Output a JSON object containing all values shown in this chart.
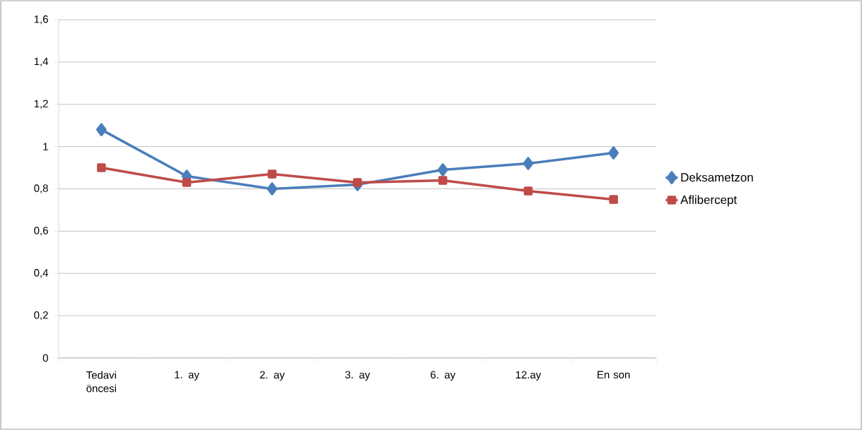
{
  "chart_data": {
    "type": "line",
    "categories": [
      "Tedavi öncesi",
      "1. ay",
      "2. ay",
      "3. ay",
      "6. ay",
      "12.ay",
      "En son"
    ],
    "series": [
      {
        "name": "Deksametzon",
        "color": "#4a7ebb",
        "marker": "diamond",
        "values": [
          1.08,
          0.86,
          0.8,
          0.82,
          0.89,
          0.92,
          0.97
        ]
      },
      {
        "name": "Aflibercept",
        "color": "#be4b48",
        "marker": "square",
        "values": [
          0.9,
          0.83,
          0.87,
          0.83,
          0.84,
          0.79,
          0.75
        ]
      }
    ],
    "ylim": [
      0,
      1.6
    ],
    "yticks": [
      {
        "value": 0,
        "label": "0"
      },
      {
        "value": 0.2,
        "label": "0,2"
      },
      {
        "value": 0.4,
        "label": "0,4"
      },
      {
        "value": 0.6,
        "label": "0,6"
      },
      {
        "value": 0.8,
        "label": "0,8"
      },
      {
        "value": 1,
        "label": "1"
      },
      {
        "value": 1.2,
        "label": "1,2"
      },
      {
        "value": 1.4,
        "label": "1,4"
      },
      {
        "value": 1.6,
        "label": "1,6"
      }
    ],
    "grid": "y",
    "legend": "right"
  }
}
